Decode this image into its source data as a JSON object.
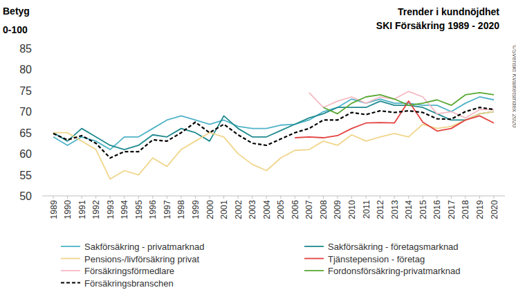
{
  "chart_data": {
    "type": "line",
    "title": "Trender i kundnöjdhet",
    "subtitle": "SKI Försäkring 1989 - 2020",
    "y_label": [
      "Betyg",
      "0-100"
    ],
    "source": "©Svenskt Kvalitetsindex 2020",
    "categories": [
      "1989",
      "1990",
      "1991",
      "1992",
      "1993",
      "1994",
      "1995",
      "1996",
      "1997",
      "1998",
      "1999",
      "2000",
      "2001",
      "2002",
      "2003",
      "2004",
      "2005",
      "2006",
      "2007",
      "2008",
      "2009",
      "2010",
      "2011",
      "2012",
      "2013",
      "2014",
      "2015",
      "2016",
      "2017",
      "2018",
      "2019",
      "2020"
    ],
    "ylim": [
      50,
      85
    ],
    "yticks": [
      50,
      55,
      60,
      65,
      70,
      75,
      80,
      85
    ],
    "grid": false,
    "legend": "bottom",
    "series": [
      {
        "name": "Sakförsäkring - privatmarknad",
        "color": "#4fb3c8",
        "line_style": "solid",
        "values": [
          64,
          62,
          64,
          63,
          61,
          64,
          64,
          66,
          68,
          69,
          68,
          67,
          68,
          66.5,
          66,
          66,
          66.8,
          67,
          68,
          70,
          71,
          73,
          72,
          73,
          72,
          72,
          71.5,
          71.5,
          70,
          72,
          73.5,
          72.8
        ]
      },
      {
        "name": "Sakförsäkring - företagsmarknad",
        "color": "#1f8a8f",
        "line_style": "solid",
        "values": [
          65,
          63,
          66,
          64,
          62,
          61,
          62,
          64.5,
          64,
          66,
          65,
          63,
          69,
          66,
          64,
          64,
          65.5,
          67,
          68.5,
          69.5,
          71,
          71,
          71,
          72.5,
          71.5,
          71.5,
          71,
          69.5,
          68,
          68,
          69.5,
          70
        ]
      },
      {
        "name": "Pensions-/livförsäkring privat",
        "color": "#f0d58a",
        "line_style": "solid",
        "values": [
          65,
          65,
          63,
          61,
          54,
          56,
          55,
          59,
          57,
          61,
          63,
          65,
          64,
          60,
          57.5,
          56,
          59,
          60.8,
          61,
          63,
          62,
          64.5,
          63,
          64,
          64.8,
          64,
          67,
          66,
          66.5,
          68,
          69.5,
          70
        ]
      },
      {
        "name": "Tjänstepension - företag",
        "color": "#e2413f",
        "line_style": "solid",
        "values": [
          null,
          null,
          null,
          null,
          null,
          null,
          null,
          null,
          null,
          null,
          null,
          null,
          null,
          null,
          null,
          null,
          null,
          63.8,
          64,
          63.8,
          64.3,
          66,
          67.3,
          67.4,
          67.3,
          72.5,
          67.5,
          65.4,
          66,
          68,
          69,
          67.3
        ]
      },
      {
        "name": "Försäkringsförmedlare",
        "color": "#f5b9c2",
        "line_style": "solid",
        "values": [
          null,
          null,
          null,
          null,
          null,
          null,
          null,
          null,
          null,
          null,
          null,
          null,
          null,
          null,
          null,
          null,
          null,
          null,
          74.5,
          71,
          72.5,
          73.5,
          72,
          73.5,
          73,
          74.8,
          73.5,
          69.5,
          70,
          68.5,
          70.5,
          70.5
        ]
      },
      {
        "name": "Fordonsförsäkring-privatmarknad",
        "color": "#5aa832",
        "line_style": "solid",
        "values": [
          null,
          null,
          null,
          null,
          null,
          null,
          null,
          null,
          null,
          null,
          null,
          null,
          null,
          null,
          null,
          null,
          null,
          null,
          null,
          71,
          69.5,
          72,
          73.5,
          74,
          73,
          71.5,
          72,
          72.8,
          71.5,
          74,
          74.5,
          74
        ]
      },
      {
        "name": "Försäkringsbranschen",
        "color": "#000000",
        "line_style": "dashed",
        "values": [
          64.8,
          63.3,
          64.3,
          62.5,
          59,
          60.5,
          60.5,
          63.3,
          63,
          65,
          67.5,
          65,
          67,
          64.5,
          62.5,
          62,
          63.5,
          65,
          66,
          68,
          68,
          69.8,
          69.3,
          70.2,
          69.8,
          70.2,
          69.8,
          68.3,
          68.2,
          70,
          71,
          70.5
        ]
      }
    ]
  }
}
